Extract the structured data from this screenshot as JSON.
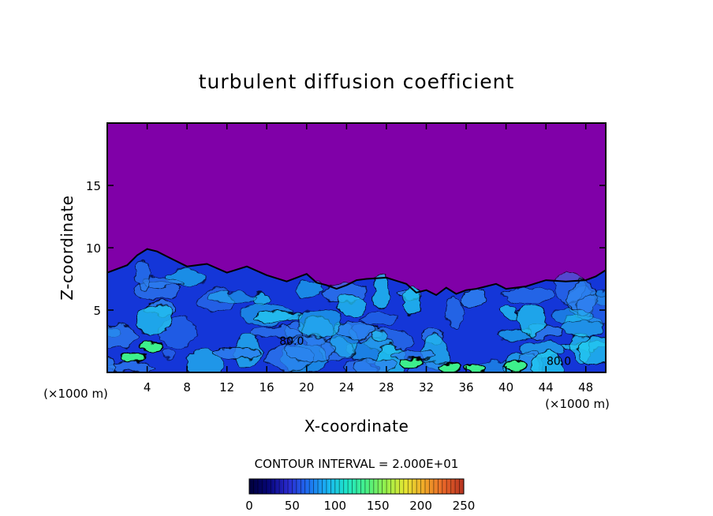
{
  "chart_data": {
    "type": "heatmap",
    "title": "turbulent diffusion coefficient",
    "xlabel": "X-coordinate",
    "ylabel": "Z-coordinate",
    "x_unit_left": "(×1000 m)",
    "x_unit_right": "(×1000 m)",
    "xlim": [
      0,
      50
    ],
    "ylim": [
      0,
      20
    ],
    "x_ticks": [
      4,
      8,
      12,
      16,
      20,
      24,
      28,
      32,
      36,
      40,
      44,
      48
    ],
    "x_tick_labels": [
      "4",
      "8",
      "12",
      "16",
      "20",
      "24",
      "28",
      "32",
      "36",
      "40",
      "44",
      "48"
    ],
    "y_ticks": [
      5,
      10,
      15
    ],
    "y_tick_labels": [
      "5",
      "10",
      "15"
    ],
    "contour_interval_text": "CONTOUR INTERVAL = 2.000E+01",
    "contour_labels": [
      {
        "x": 18.5,
        "y": 2.2,
        "text": "80.0"
      },
      {
        "x": 45.3,
        "y": 0.6,
        "text": "80.0"
      }
    ],
    "turbulent_layer_top": {
      "x": [
        0,
        2,
        3,
        4,
        5,
        6,
        8,
        10,
        12,
        14,
        16,
        18,
        19,
        20,
        21,
        22,
        23,
        24,
        25,
        26,
        28,
        30,
        31,
        32,
        33,
        34,
        35,
        36,
        37,
        38,
        39,
        40,
        42,
        44,
        46,
        48,
        49,
        50
      ],
      "z": [
        8.0,
        8.6,
        9.4,
        9.9,
        9.7,
        9.3,
        8.5,
        8.7,
        8.0,
        8.5,
        7.8,
        7.3,
        7.6,
        7.9,
        7.2,
        7.0,
        6.7,
        7.0,
        7.4,
        7.5,
        7.6,
        7.1,
        6.4,
        6.6,
        6.2,
        6.8,
        6.3,
        6.6,
        6.7,
        6.9,
        7.1,
        6.7,
        6.9,
        7.4,
        7.3,
        7.4,
        7.7,
        8.2
      ]
    },
    "colorbar": {
      "min": 0,
      "max": 250,
      "tick_labels": [
        "0",
        "50",
        "100",
        "150",
        "200",
        "250"
      ],
      "ticks": [
        0,
        50,
        100,
        150,
        200,
        250
      ],
      "colors": [
        "#00003a",
        "#06067a",
        "#2a2ad0",
        "#1e6ef0",
        "#19b4f2",
        "#1ee6c8",
        "#46f086",
        "#96f04a",
        "#e6e632",
        "#f0a628",
        "#e86428",
        "#b43220"
      ]
    },
    "colors": {
      "background_field": "#8000a8",
      "turbulent_base": "#1436d8",
      "turbulent_light": "#2f84f0",
      "turbulent_cyan": "#22c8f0",
      "high_green": "#3cf08c",
      "contour": "#000000"
    }
  }
}
